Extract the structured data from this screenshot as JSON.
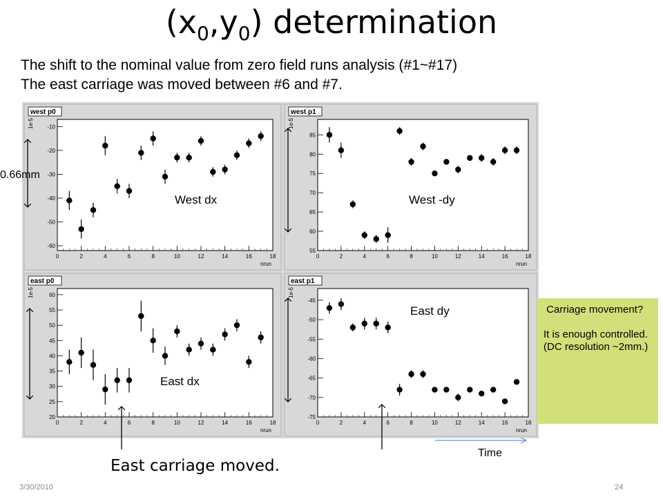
{
  "title": {
    "main": "(x",
    "sub0": "0",
    "sep": ",y",
    "sub1": "0",
    "tail": ") determination"
  },
  "subtitle_1": "The shift to the nominal value from zero field runs analysis  (#1~#17)",
  "subtitle_2": "The east carriage was moved between #6 and #7.",
  "annotations": {
    "west_dx": "West dx",
    "west_dy": "West  -dy",
    "east_dx": "East dx",
    "east_dy": "East dy",
    "scale_label": "0.66mm",
    "east_moved": "East carriage moved.",
    "time": "Time"
  },
  "note_box": {
    "line1": " Carriage movement?",
    "line2": "It is enough controlled.",
    "line3": "(DC resolution ~2mm.)"
  },
  "footer": {
    "date": "3/30/2010",
    "page": "24"
  },
  "colors": {
    "panel_bg": "#d8d8d8",
    "plot_bg": "#ffffff",
    "note_bg": "#d3df7a",
    "arrow": "#000000",
    "time_arrow": "#6b8fd6"
  },
  "chart_data": [
    {
      "type": "scatter",
      "title": "west p0",
      "xlabel": "nrun",
      "ylabel": "1e-5",
      "xlim": [
        0,
        18
      ],
      "ylim": [
        -62,
        -7
      ],
      "xticks": [
        0,
        2,
        4,
        6,
        8,
        10,
        12,
        14,
        16,
        18
      ],
      "yticks": [
        -60,
        -50,
        -40,
        -30,
        -20,
        -10
      ],
      "x": [
        1,
        2,
        3,
        4,
        5,
        6,
        7,
        8,
        9,
        10,
        11,
        12,
        13,
        14,
        15,
        16,
        17
      ],
      "y": [
        -41,
        -53,
        -45,
        -18,
        -35,
        -37,
        -21,
        -15,
        -31,
        -23,
        -23,
        -16,
        -29,
        -28,
        -22,
        -17,
        -14
      ],
      "yerr": [
        4,
        4,
        3,
        4,
        3,
        3,
        3,
        3,
        3,
        2,
        2,
        2,
        2,
        2,
        2,
        2,
        2
      ]
    },
    {
      "type": "scatter",
      "title": "west p1",
      "xlabel": "nrun",
      "ylabel": "1e-5",
      "xlim": [
        0,
        18
      ],
      "ylim": [
        55,
        89
      ],
      "xticks": [
        0,
        2,
        4,
        6,
        8,
        10,
        12,
        14,
        16,
        18
      ],
      "yticks": [
        55,
        60,
        65,
        70,
        75,
        80,
        85
      ],
      "x": [
        1,
        2,
        3,
        4,
        5,
        6,
        7,
        8,
        9,
        10,
        11,
        12,
        13,
        14,
        15,
        16,
        17
      ],
      "y": [
        85,
        81,
        67,
        59,
        58,
        59,
        86,
        78,
        82,
        75,
        78,
        76,
        79,
        79,
        78,
        81,
        81
      ],
      "yerr": [
        2,
        2,
        1,
        1,
        1,
        2,
        1,
        1,
        1,
        0.5,
        0.5,
        1,
        0.5,
        1,
        1,
        1,
        1
      ]
    },
    {
      "type": "scatter",
      "title": "east p0",
      "xlabel": "nrun",
      "ylabel": "1e-5",
      "xlim": [
        0,
        18
      ],
      "ylim": [
        20,
        62
      ],
      "xticks": [
        0,
        2,
        4,
        6,
        8,
        10,
        12,
        14,
        16,
        18
      ],
      "yticks": [
        20,
        25,
        30,
        35,
        40,
        45,
        50,
        55,
        60
      ],
      "x": [
        1,
        2,
        3,
        4,
        5,
        6,
        7,
        8,
        9,
        10,
        11,
        12,
        13,
        14,
        15,
        16,
        17
      ],
      "y": [
        38,
        41,
        37,
        29,
        32,
        32,
        53,
        45,
        40,
        48,
        42,
        44,
        42,
        47,
        50,
        38,
        46
      ],
      "yerr": [
        4,
        5,
        5,
        5,
        4,
        4,
        5,
        4,
        3,
        2,
        2,
        2,
        2,
        2,
        2,
        2,
        2
      ]
    },
    {
      "type": "scatter",
      "title": "east p1",
      "xlabel": "nrun",
      "ylabel": "1e-5",
      "xlim": [
        0,
        18
      ],
      "ylim": [
        -75,
        -42
      ],
      "xticks": [
        0,
        2,
        4,
        6,
        8,
        10,
        12,
        14,
        16,
        18
      ],
      "yticks": [
        -75,
        -70,
        -65,
        -60,
        -55,
        -50,
        -45
      ],
      "x": [
        1,
        2,
        3,
        4,
        5,
        6,
        7,
        8,
        9,
        10,
        11,
        12,
        13,
        14,
        15,
        16,
        17
      ],
      "y": [
        -47,
        -46,
        -52,
        -51,
        -51,
        -52,
        -68,
        -64,
        -64,
        -68,
        -68,
        -70,
        -68,
        -69,
        -68,
        -71,
        -66
      ],
      "yerr": [
        1.5,
        1.5,
        1,
        1.5,
        1.5,
        1.5,
        1.5,
        1,
        1,
        0.5,
        0.5,
        1,
        0.5,
        0.5,
        0.5,
        0.5,
        0.5
      ]
    }
  ]
}
